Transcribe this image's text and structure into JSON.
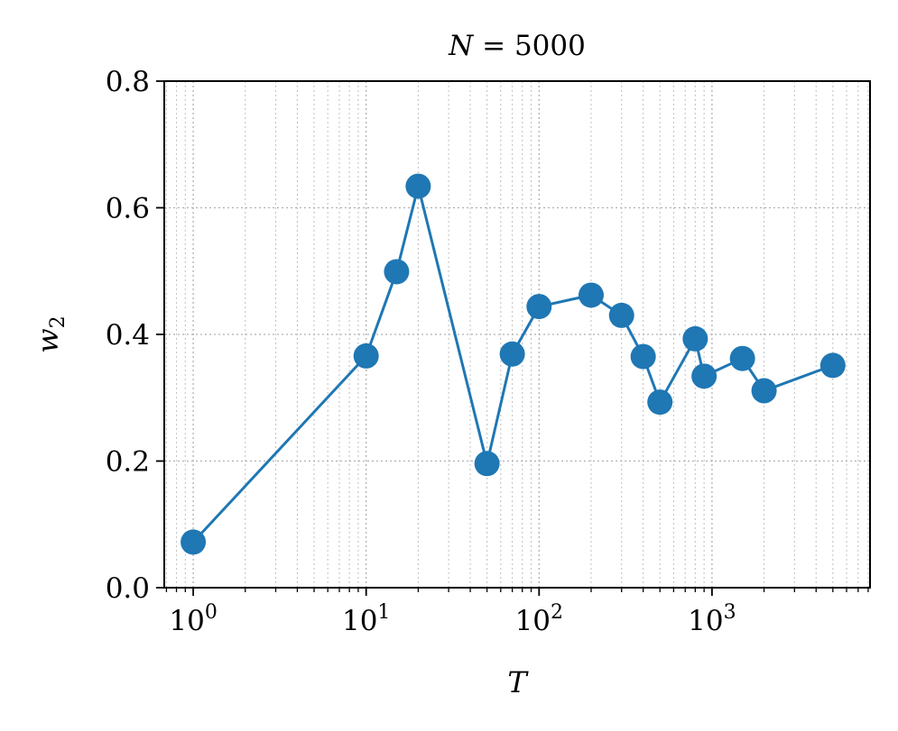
{
  "chart_data": {
    "type": "line",
    "title_parts": {
      "var": "N",
      "op": " = ",
      "value": "5000"
    },
    "xlabel": "T",
    "ylabel_parts": {
      "var": "w",
      "sub": "2"
    },
    "x_scale": "log",
    "xlim": [
      0.68,
      8200
    ],
    "ylim": [
      0,
      0.8
    ],
    "yticks": [
      0.0,
      0.2,
      0.4,
      0.6,
      0.8
    ],
    "ytick_labels": [
      "0.0",
      "0.2",
      "0.4",
      "0.6",
      "0.8"
    ],
    "xticks": [
      1,
      10,
      100,
      1000
    ],
    "xtick_base": "10",
    "xtick_exponents": [
      "0",
      "1",
      "2",
      "3"
    ],
    "grid": true,
    "series": [
      {
        "color": "#1f77b4",
        "marker": "circle",
        "x": [
          1,
          10,
          15,
          20,
          50,
          70,
          100,
          200,
          300,
          400,
          500,
          800,
          900,
          1500,
          2000,
          5000
        ],
        "y": [
          0.072,
          0.366,
          0.499,
          0.634,
          0.196,
          0.369,
          0.444,
          0.462,
          0.43,
          0.365,
          0.293,
          0.393,
          0.334,
          0.362,
          0.311,
          0.351
        ]
      }
    ]
  }
}
